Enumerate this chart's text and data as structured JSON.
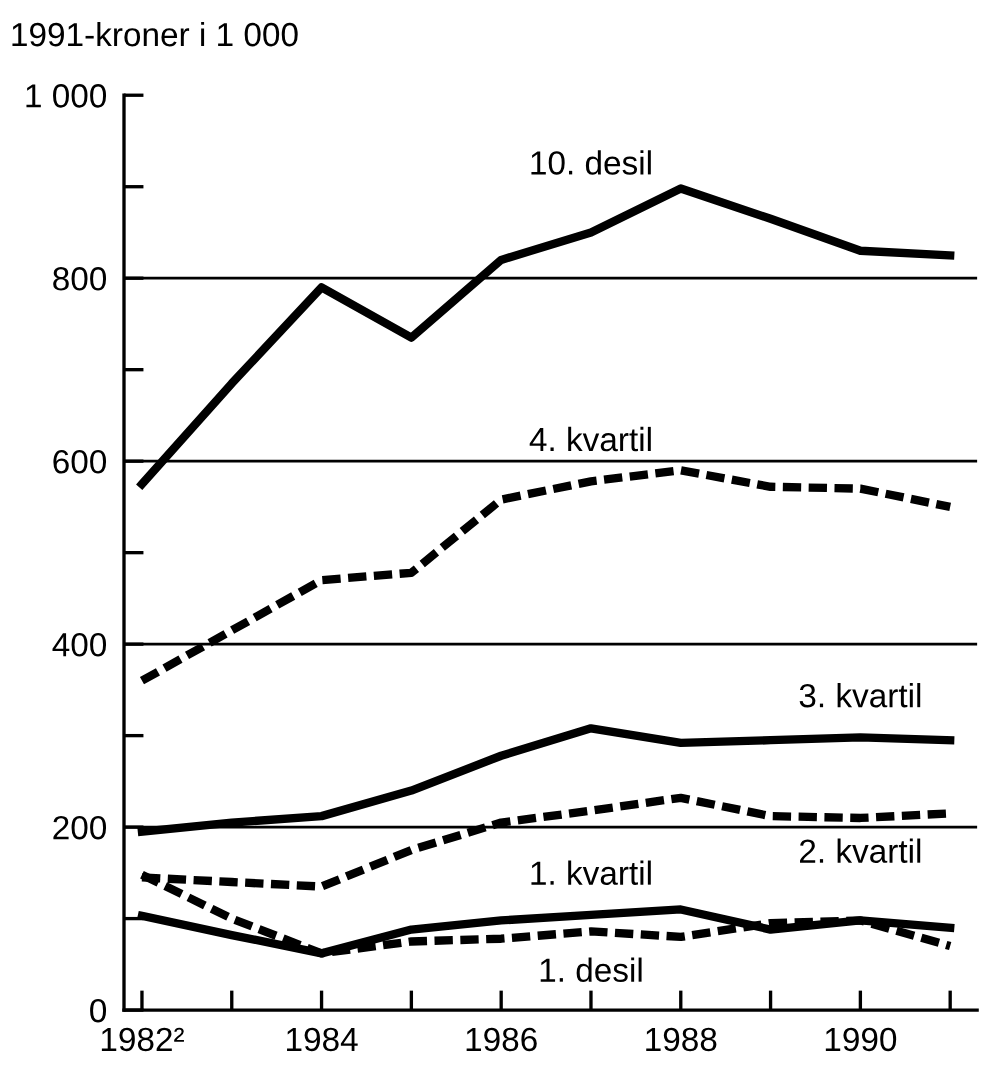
{
  "chart_data": {
    "type": "line",
    "ylabel": "1991-kroner i 1 000",
    "x": [
      1982,
      1983,
      1984,
      1985,
      1986,
      1987,
      1988,
      1989,
      1990,
      1991
    ],
    "xlim": [
      1981.8,
      1991.3
    ],
    "xticks": [
      {
        "value": 1982,
        "label": "1982²"
      },
      {
        "value": 1983,
        "label": null
      },
      1984,
      {
        "value": 1985,
        "label": null
      },
      1986,
      {
        "value": 1987,
        "label": null
      },
      1988,
      {
        "value": 1989,
        "label": null
      },
      1990,
      {
        "value": 1991,
        "label": null
      }
    ],
    "ylim": [
      0,
      1000
    ],
    "yticks": [
      0,
      {
        "value": 100,
        "label": null
      },
      200,
      {
        "value": 300,
        "label": null
      },
      400,
      {
        "value": 500,
        "label": null
      },
      600,
      {
        "value": 700,
        "label": null
      },
      800,
      {
        "value": 900,
        "label": null
      },
      {
        "value": 1000,
        "label": "1 000"
      }
    ],
    "grid": "y",
    "legend": false,
    "marker": "none",
    "series": [
      {
        "name": "10. desil",
        "color": "#000000",
        "line_style": "solid",
        "values": [
          575,
          685,
          790,
          735,
          820,
          850,
          898,
          865,
          830,
          825
        ]
      },
      {
        "name": "4. kvartil",
        "color": "#000000",
        "line_style": "dashed",
        "values": [
          360,
          415,
          470,
          478,
          558,
          578,
          590,
          572,
          570,
          550
        ]
      },
      {
        "name": "3. kvartil",
        "color": "#000000",
        "line_style": "solid",
        "values": [
          195,
          205,
          212,
          240,
          278,
          308,
          292,
          295,
          298,
          295
        ]
      },
      {
        "name": "2. kvartil",
        "color": "#000000",
        "line_style": "dashed",
        "values": [
          145,
          140,
          135,
          175,
          205,
          218,
          232,
          212,
          210,
          215
        ]
      },
      {
        "name": "1. kvartil",
        "color": "#000000",
        "line_style": "solid",
        "values": [
          103,
          82,
          62,
          88,
          98,
          104,
          110,
          88,
          98,
          90
        ]
      },
      {
        "name": "1. desil",
        "color": "#000000",
        "line_style": "dashed",
        "values": [
          148,
          100,
          62,
          75,
          78,
          86,
          80,
          95,
          98,
          70
        ]
      }
    ]
  }
}
